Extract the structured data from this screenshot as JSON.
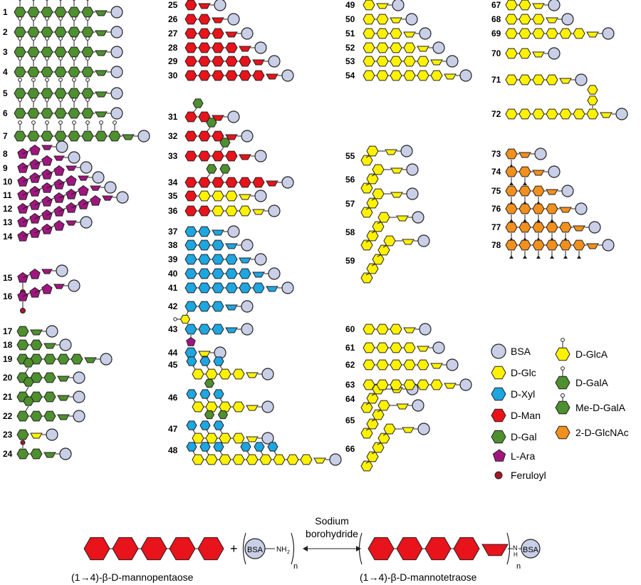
{
  "colors": {
    "bsa": "#c8cfe6",
    "glc": "#fff200",
    "xyl": "#1ea6e0",
    "man": "#e8131b",
    "gal": "#4e8f2f",
    "ara": "#a0167f",
    "glcnac": "#f2901e",
    "feruloyl": "#a6172a",
    "mark": "#ffffff",
    "outline": "#231f20"
  },
  "legend": [
    {
      "key": "bsa",
      "label": "BSA"
    },
    {
      "key": "glc",
      "label": "D-Glc"
    },
    {
      "key": "xyl",
      "label": "D-Xyl"
    },
    {
      "key": "man",
      "label": "D-Man"
    },
    {
      "key": "gal",
      "label": "D-Gal"
    },
    {
      "key": "ara",
      "label": "L-Ara"
    },
    {
      "key": "feruloyl",
      "label": "Feruloyl"
    },
    {
      "key": "glca",
      "label": "D-GlcA"
    },
    {
      "key": "gala",
      "label": "D-GalA"
    },
    {
      "key": "megala",
      "label": "Me-D-GalA"
    },
    {
      "key": "glcnac",
      "label": "2-D-GlcNAc"
    }
  ],
  "compounds": [
    {
      "id": "1",
      "backbone": "gal",
      "n": 6,
      "decor": "pin"
    },
    {
      "id": "2",
      "backbone": "gal",
      "n": 6,
      "decor": "pin"
    },
    {
      "id": "3",
      "backbone": "gal",
      "n": 6,
      "decor": "pin"
    },
    {
      "id": "4",
      "backbone": "gal",
      "n": 6,
      "decor": "pin"
    },
    {
      "id": "5",
      "backbone": "gal",
      "n": 6,
      "decor": "pin"
    },
    {
      "id": "6",
      "backbone": "gal",
      "n": 6,
      "decor": "pin"
    },
    {
      "id": "7",
      "backbone": "gal",
      "n": 8,
      "decor": "pin"
    },
    {
      "id": "8",
      "backbone": "ara",
      "n": 2,
      "decor": "stair"
    },
    {
      "id": "9",
      "backbone": "ara",
      "n": 3,
      "decor": "stair"
    },
    {
      "id": "10",
      "backbone": "ara",
      "n": 4,
      "decor": "stair"
    },
    {
      "id": "11",
      "backbone": "ara",
      "n": 5,
      "decor": "stair"
    },
    {
      "id": "12",
      "backbone": "ara",
      "n": 6,
      "decor": "stair"
    },
    {
      "id": "13",
      "backbone": "ara",
      "n": 7,
      "decor": "stair"
    },
    {
      "id": "14",
      "backbone": "ara",
      "n": 4,
      "decor": "stair"
    },
    {
      "id": "15",
      "backbone": "ara",
      "n": 2,
      "decor": "feruloyl"
    },
    {
      "id": "16",
      "backbone": "ara",
      "n": 3,
      "decor": "feruloyl"
    },
    {
      "id": "17",
      "backbone": "gal",
      "n": 1,
      "decor": "none"
    },
    {
      "id": "18",
      "backbone": "gal",
      "n": 2,
      "decor": "none"
    },
    {
      "id": "19",
      "backbone": "gal",
      "n": 5,
      "decor": "none"
    },
    {
      "id": "20",
      "backbone": "gal",
      "n": 3,
      "decor": "branch"
    },
    {
      "id": "21",
      "backbone": "gal",
      "n": 3,
      "decor": "branch"
    },
    {
      "id": "22",
      "backbone": "gal",
      "n": 3,
      "decor": "branch"
    },
    {
      "id": "23",
      "backbone": "gal",
      "n": 1,
      "decor": "glc"
    },
    {
      "id": "24",
      "backbone": "gal",
      "n": 2,
      "decor": "feruloyl"
    },
    {
      "id": "25",
      "backbone": "man",
      "n": 1,
      "decor": "none"
    },
    {
      "id": "26",
      "backbone": "man",
      "n": 2,
      "decor": "none"
    },
    {
      "id": "27",
      "backbone": "man",
      "n": 3,
      "decor": "none"
    },
    {
      "id": "28",
      "backbone": "man",
      "n": 4,
      "decor": "none"
    },
    {
      "id": "29",
      "backbone": "man",
      "n": 5,
      "decor": "none"
    },
    {
      "id": "30",
      "backbone": "man",
      "n": 6,
      "decor": "none"
    },
    {
      "id": "31",
      "backbone": "man",
      "n": 2,
      "decor": "galtop"
    },
    {
      "id": "32",
      "backbone": "man",
      "n": 3,
      "decor": "galtop"
    },
    {
      "id": "33",
      "backbone": "man",
      "n": 4,
      "decor": "galtop"
    },
    {
      "id": "34",
      "backbone": "man",
      "n": 6,
      "decor": "galtop2"
    },
    {
      "id": "35",
      "backbone": "mix",
      "n": 4,
      "decor": "none"
    },
    {
      "id": "36",
      "backbone": "mix",
      "n": 5,
      "decor": "none"
    },
    {
      "id": "37",
      "backbone": "xyl",
      "n": 2,
      "decor": "none"
    },
    {
      "id": "38",
      "backbone": "xyl",
      "n": 3,
      "decor": "none"
    },
    {
      "id": "39",
      "backbone": "xyl",
      "n": 4,
      "decor": "none"
    },
    {
      "id": "40",
      "backbone": "xyl",
      "n": 5,
      "decor": "none"
    },
    {
      "id": "41",
      "backbone": "xyl",
      "n": 6,
      "decor": "none"
    },
    {
      "id": "42",
      "backbone": "xyl",
      "n": 3,
      "decor": "glca"
    },
    {
      "id": "43",
      "backbone": "xyl",
      "n": 3,
      "decor": "ara"
    },
    {
      "id": "44",
      "backbone": "xyl",
      "n": 1,
      "decor": "glc"
    },
    {
      "id": "45",
      "backbone": "glc",
      "n": 5,
      "decor": "xyltop"
    },
    {
      "id": "46",
      "backbone": "glc",
      "n": 5,
      "decor": "xyltop"
    },
    {
      "id": "47",
      "backbone": "glc",
      "n": 5,
      "decor": "xyltop"
    },
    {
      "id": "48",
      "backbone": "glc",
      "n": 10,
      "decor": "xyltop"
    },
    {
      "id": "49",
      "backbone": "glc",
      "n": 1,
      "decor": "none"
    },
    {
      "id": "50",
      "backbone": "glc",
      "n": 2,
      "decor": "none"
    },
    {
      "id": "51",
      "backbone": "glc",
      "n": 3,
      "decor": "none"
    },
    {
      "id": "52",
      "backbone": "glc",
      "n": 4,
      "decor": "none"
    },
    {
      "id": "53",
      "backbone": "glc",
      "n": 5,
      "decor": "none"
    },
    {
      "id": "54",
      "backbone": "glc",
      "n": 6,
      "decor": "none"
    },
    {
      "id": "55",
      "backbone": "glc",
      "n": 2,
      "decor": "stair"
    },
    {
      "id": "56",
      "backbone": "glc",
      "n": 3,
      "decor": "stair"
    },
    {
      "id": "57",
      "backbone": "glc",
      "n": 3,
      "decor": "stair"
    },
    {
      "id": "58",
      "backbone": "glc",
      "n": 4,
      "decor": "stair"
    },
    {
      "id": "59",
      "backbone": "glc",
      "n": 5,
      "decor": "stair"
    },
    {
      "id": "60",
      "backbone": "glc",
      "n": 3,
      "decor": "stair"
    },
    {
      "id": "61",
      "backbone": "glc",
      "n": 4,
      "decor": "none"
    },
    {
      "id": "62",
      "backbone": "glc",
      "n": 5,
      "decor": "none"
    },
    {
      "id": "63",
      "backbone": "glc",
      "n": 6,
      "decor": "none"
    },
    {
      "id": "64",
      "backbone": "glc",
      "n": 4,
      "decor": "stair"
    },
    {
      "id": "65",
      "backbone": "glc",
      "n": 5,
      "decor": "stair"
    },
    {
      "id": "66",
      "backbone": "glc",
      "n": 6,
      "decor": "stair"
    },
    {
      "id": "67",
      "backbone": "glc",
      "n": 2,
      "decor": "none"
    },
    {
      "id": "68",
      "backbone": "glc",
      "n": 3,
      "decor": "none"
    },
    {
      "id": "69",
      "backbone": "glc",
      "n": 6,
      "decor": "none"
    },
    {
      "id": "70",
      "backbone": "glc",
      "n": 3,
      "decor": "stair"
    },
    {
      "id": "71",
      "backbone": "glc",
      "n": 5,
      "decor": "stair"
    },
    {
      "id": "72",
      "backbone": "glc",
      "n": 8,
      "decor": "branch"
    },
    {
      "id": "73",
      "backbone": "glcnac",
      "n": 1,
      "decor": "pin"
    },
    {
      "id": "74",
      "backbone": "glcnac",
      "n": 2,
      "decor": "pin"
    },
    {
      "id": "75",
      "backbone": "glcnac",
      "n": 3,
      "decor": "pin"
    },
    {
      "id": "76",
      "backbone": "glcnac",
      "n": 4,
      "decor": "pin"
    },
    {
      "id": "77",
      "backbone": "glcnac",
      "n": 5,
      "decor": "pin"
    },
    {
      "id": "78",
      "backbone": "glcnac",
      "n": 6,
      "decor": "pin"
    }
  ],
  "reaction": {
    "reagent_line1": "Sodium",
    "reagent_line2": "borohydride",
    "left_label": "(1→4)-β-D-mannopentaose",
    "right_label": "(1→4)-β-D-mannotetraose",
    "bsa": "BSA",
    "plus": "+",
    "nh2": "NH",
    "sub2": "2",
    "n": "n",
    "nh_n": "N",
    "nh_h": "H"
  }
}
